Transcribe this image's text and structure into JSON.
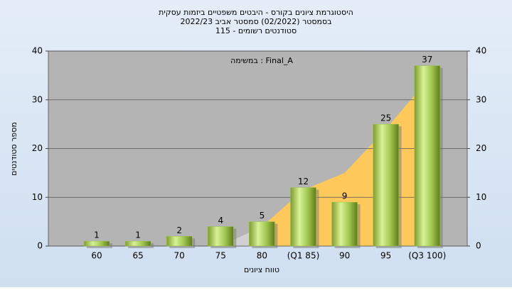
{
  "chart_data": {
    "type": "bar",
    "title": [
      "היסטוגרמת ציונים בקורס - היבטים משפטיים ביזמות עסקית",
      "בסמסטר (02/2022)  סמסטר אביב 2022/23",
      "סטודנטים רשומים - 115"
    ],
    "annotation": "במשימה : Final_A",
    "ylabel": "מספר סטודנטים",
    "xlabel": "טווח ציונים",
    "categories": [
      "60",
      "65",
      "70",
      "75",
      "80",
      "(Q1 85)",
      "90",
      "95",
      "(Q3 100)"
    ],
    "series": [
      {
        "color": "#9cc24a",
        "values": [
          1,
          1,
          2,
          4,
          5,
          12,
          9,
          25,
          37
        ]
      },
      {
        "type": "area",
        "color": "#d0d0d0",
        "values": [
          null,
          null,
          null,
          0,
          4,
          null,
          null,
          null,
          null
        ]
      },
      {
        "type": "area",
        "color": "#ffc85a",
        "values": [
          null,
          null,
          null,
          null,
          4,
          11.5,
          15,
          24,
          34
        ]
      }
    ],
    "ylim": [
      0,
      40
    ],
    "yticks": [
      0,
      10,
      20,
      30,
      40
    ],
    "y2lim": [
      0,
      40
    ],
    "y2ticks": [
      0,
      10,
      20,
      30,
      40
    ],
    "grid": true
  }
}
